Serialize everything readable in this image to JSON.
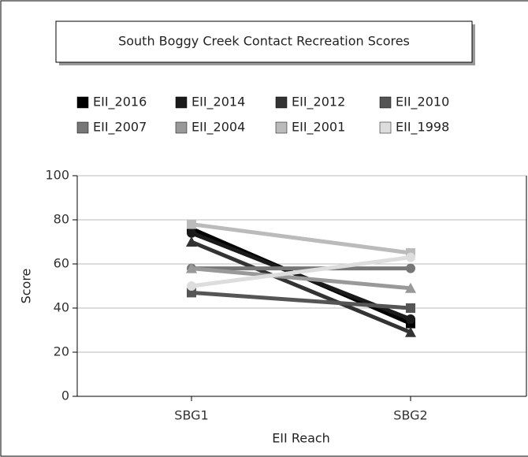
{
  "chart_data": {
    "type": "line",
    "title": "South Boggy Creek Contact Recreation Scores",
    "x_label": "EII Reach",
    "y_label": "Score",
    "categories": [
      "SBG1",
      "SBG2"
    ],
    "series": [
      {
        "name": "EII_2016",
        "color": "#000000",
        "values": [
          76,
          33
        ]
      },
      {
        "name": "EII_2014",
        "color": "#1a1a1a",
        "values": [
          74,
          35
        ]
      },
      {
        "name": "EII_2012",
        "color": "#333333",
        "values": [
          70,
          29
        ]
      },
      {
        "name": "EII_2010",
        "color": "#555555",
        "values": [
          47,
          40
        ]
      },
      {
        "name": "EII_2007",
        "color": "#777777",
        "values": [
          58,
          58
        ]
      },
      {
        "name": "EII_2004",
        "color": "#999999",
        "values": [
          58,
          49
        ]
      },
      {
        "name": "EII_2001",
        "color": "#bbbbbb",
        "values": [
          78,
          65
        ]
      },
      {
        "name": "EII_1998",
        "color": "#dddddd",
        "values": [
          50,
          63
        ]
      }
    ],
    "ylim": [
      0,
      100
    ],
    "yticks": [
      0,
      20,
      40,
      60,
      80,
      100
    ],
    "grid": true
  }
}
